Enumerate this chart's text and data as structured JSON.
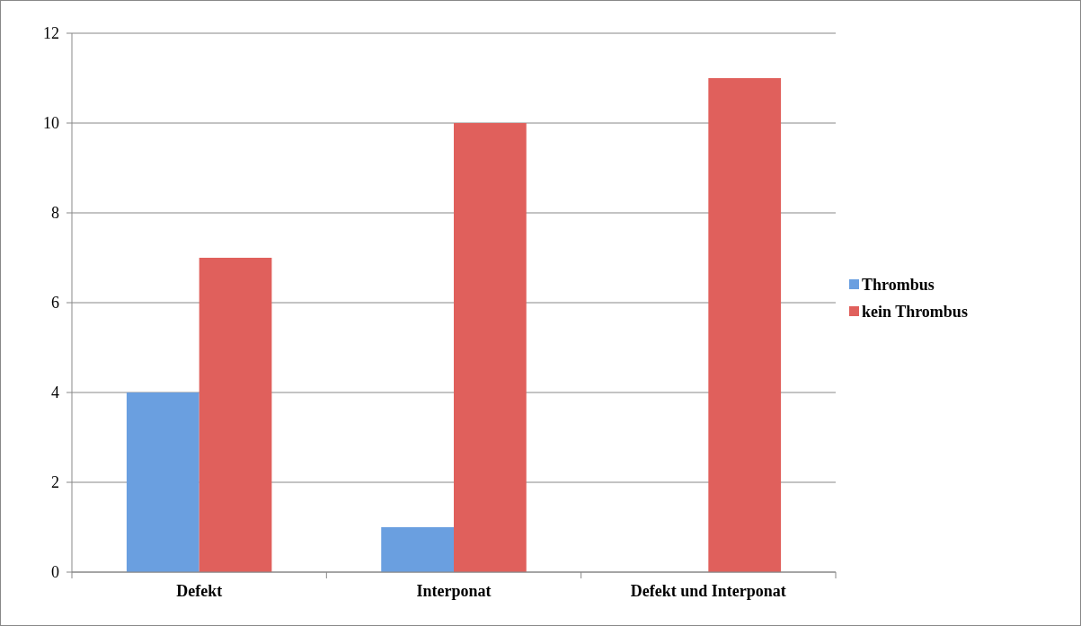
{
  "chart_data": {
    "type": "bar",
    "categories": [
      "Defekt",
      "Interponat",
      "Defekt und Interponat"
    ],
    "series": [
      {
        "name": "Thrombus",
        "color": "#6a9fe0",
        "values": [
          4,
          1,
          0
        ]
      },
      {
        "name": "kein Thrombus",
        "color": "#e0605c",
        "values": [
          7,
          10,
          11
        ]
      }
    ],
    "ylim": [
      0,
      12
    ],
    "yticks": [
      0,
      2,
      4,
      6,
      8,
      10,
      12
    ],
    "grid": "y",
    "legend": "right"
  }
}
